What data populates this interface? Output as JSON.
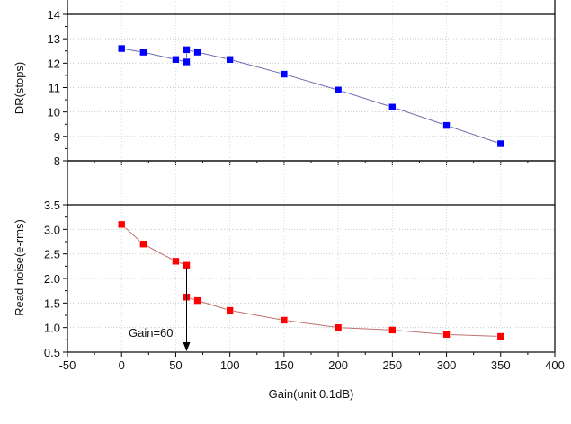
{
  "chart_data": [
    {
      "type": "line",
      "panel": "top",
      "ylabel": "DR(stops)",
      "ylim": [
        8,
        14
      ],
      "yticks": [
        8,
        9,
        10,
        11,
        12,
        13,
        14
      ],
      "xlim": [
        -50,
        400
      ],
      "grid": true,
      "marker_color": "#0000ff",
      "line_color": "#6b6bb0",
      "series": [
        {
          "name": "DR",
          "x": [
            0,
            20,
            50,
            60,
            60,
            70,
            100,
            150,
            200,
            250,
            300,
            350
          ],
          "y": [
            12.6,
            12.45,
            12.15,
            12.05,
            12.55,
            12.45,
            12.15,
            11.55,
            10.9,
            10.2,
            9.45,
            8.7
          ]
        }
      ]
    },
    {
      "type": "line",
      "panel": "bottom",
      "ylabel": "Read noise(e-rms)",
      "xlabel": "Gain(unit 0.1dB)",
      "ylim": [
        0.5,
        3.5
      ],
      "yticks": [
        "0.5",
        "1.0",
        "1.5",
        "2.0",
        "2.5",
        "3.0",
        "3.5"
      ],
      "xlim": [
        -50,
        400
      ],
      "xticks": [
        -50,
        0,
        50,
        100,
        150,
        200,
        250,
        300,
        350,
        400
      ],
      "grid": true,
      "marker_color": "#ff0000",
      "line_color": "#c07070",
      "series": [
        {
          "name": "Read noise",
          "x": [
            0,
            20,
            50,
            60,
            60,
            70,
            100,
            150,
            200,
            250,
            300,
            350
          ],
          "y": [
            3.1,
            2.7,
            2.35,
            2.27,
            1.62,
            1.55,
            1.35,
            1.15,
            1.0,
            0.95,
            0.86,
            0.82
          ]
        }
      ],
      "annotation": {
        "text": "Gain=60",
        "x": 60
      }
    }
  ]
}
